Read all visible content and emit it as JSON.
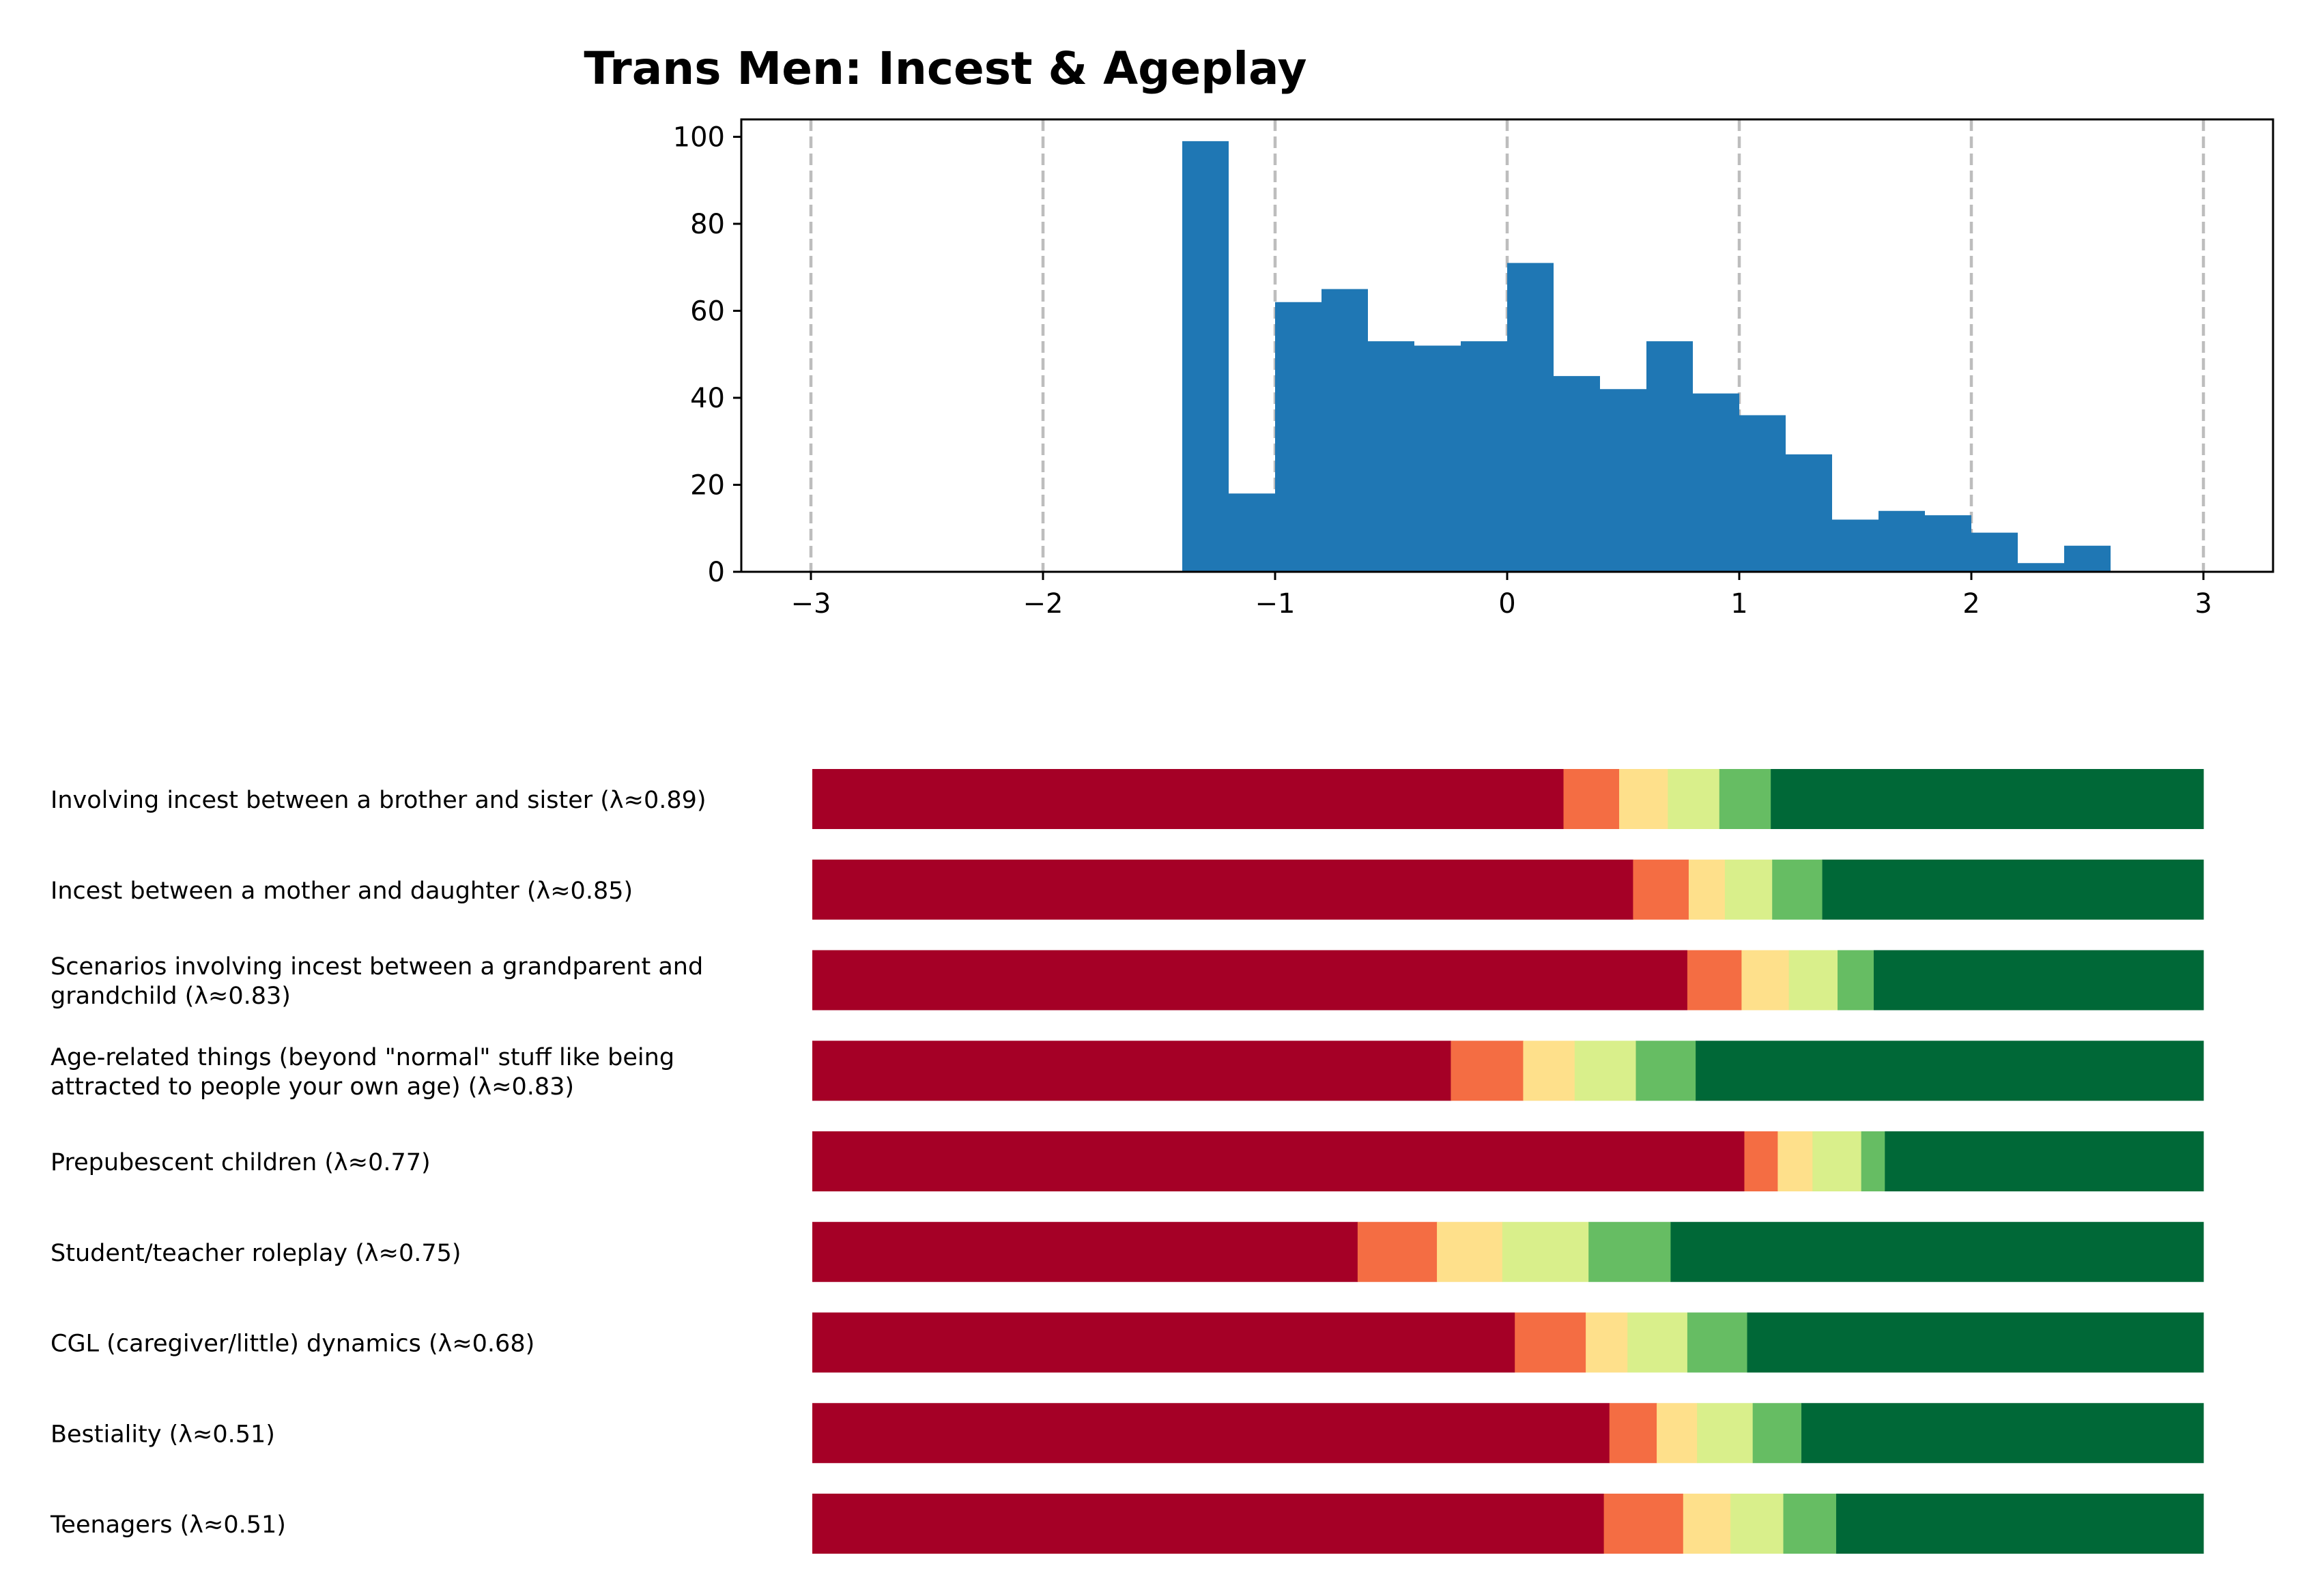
{
  "chart_data": [
    {
      "type": "bar",
      "subtype": "histogram",
      "title": "Trans Men: Incest & Ageplay",
      "xlabel": "",
      "ylabel": "",
      "xlim": [
        -3.3,
        3.3
      ],
      "ylim": [
        0,
        104
      ],
      "xticks": [
        -3,
        -2,
        -1,
        0,
        1,
        2,
        3
      ],
      "xtick_labels": [
        "−3",
        "−2",
        "−1",
        "0",
        "1",
        "2",
        "3"
      ],
      "yticks": [
        0,
        20,
        40,
        60,
        80,
        100
      ],
      "ytick_labels": [
        "0",
        "20",
        "40",
        "60",
        "80",
        "100"
      ],
      "vertical_dashed_lines": [
        -3,
        -2,
        -1,
        0,
        1,
        2,
        3
      ],
      "bin_width": 0.2,
      "bins": [
        {
          "x0": -1.4,
          "value": 99
        },
        {
          "x0": -1.2,
          "value": 18
        },
        {
          "x0": -1.0,
          "value": 62
        },
        {
          "x0": -0.8,
          "value": 65
        },
        {
          "x0": -0.6,
          "value": 53
        },
        {
          "x0": -0.4,
          "value": 52
        },
        {
          "x0": -0.2,
          "value": 53
        },
        {
          "x0": 0.0,
          "value": 71
        },
        {
          "x0": 0.2,
          "value": 45
        },
        {
          "x0": 0.4,
          "value": 42
        },
        {
          "x0": 0.6,
          "value": 53
        },
        {
          "x0": 0.8,
          "value": 41
        },
        {
          "x0": 1.0,
          "value": 36
        },
        {
          "x0": 1.2,
          "value": 27
        },
        {
          "x0": 1.4,
          "value": 12
        },
        {
          "x0": 1.6,
          "value": 14
        },
        {
          "x0": 1.8,
          "value": 13
        },
        {
          "x0": 2.0,
          "value": 9
        },
        {
          "x0": 2.2,
          "value": 2
        },
        {
          "x0": 2.4,
          "value": 6
        }
      ],
      "bar_color": "#1f77b4",
      "grid": false
    },
    {
      "type": "bar",
      "subtype": "stacked-horizontal-100",
      "segment_colors": [
        "#a50026",
        "#f46d43",
        "#fee08b",
        "#d9ef8b",
        "#66bd63",
        "#006837"
      ],
      "categories": [
        "Involving incest between a brother and sister (λ≈0.89)",
        "Incest between a mother and daughter (λ≈0.85)",
        "Scenarios involving incest between a grandparent and grandchild (λ≈0.83)",
        "Age-related things (beyond \"normal\" stuff like being attracted to people your own age) (λ≈0.83)",
        "Prepubescent children (λ≈0.77)",
        "Student/teacher roleplay (λ≈0.75)",
        "CGL (caregiver/little) dynamics (λ≈0.68)",
        "Bestiality (λ≈0.51)",
        "Teenagers (λ≈0.51)"
      ],
      "label_lines": [
        [
          "Involving incest between a brother and sister (λ≈0.89)"
        ],
        [
          "Incest between a mother and daughter (λ≈0.85)"
        ],
        [
          "Scenarios involving incest between a grandparent and",
          "grandchild (λ≈0.83)"
        ],
        [
          "Age-related things (beyond \"normal\" stuff like being",
          "attracted to people your own age) (λ≈0.83)"
        ],
        [
          "Prepubescent children (λ≈0.77)"
        ],
        [
          "Student/teacher roleplay (λ≈0.75)"
        ],
        [
          "CGL (caregiver/little) dynamics (λ≈0.68)"
        ],
        [
          "Bestiality (λ≈0.51)"
        ],
        [
          "Teenagers (λ≈0.51)"
        ]
      ],
      "shares": [
        [
          0.54,
          0.04,
          0.035,
          0.037,
          0.037,
          0.311
        ],
        [
          0.59,
          0.04,
          0.026,
          0.034,
          0.036,
          0.274
        ],
        [
          0.629,
          0.039,
          0.034,
          0.035,
          0.026,
          0.237
        ],
        [
          0.459,
          0.052,
          0.037,
          0.044,
          0.043,
          0.365
        ],
        [
          0.67,
          0.024,
          0.025,
          0.035,
          0.017,
          0.229
        ],
        [
          0.392,
          0.057,
          0.047,
          0.062,
          0.059,
          0.383
        ],
        [
          0.505,
          0.051,
          0.03,
          0.043,
          0.043,
          0.328
        ],
        [
          0.573,
          0.034,
          0.029,
          0.04,
          0.035,
          0.289
        ],
        [
          0.569,
          0.057,
          0.034,
          0.038,
          0.038,
          0.264
        ]
      ]
    }
  ]
}
